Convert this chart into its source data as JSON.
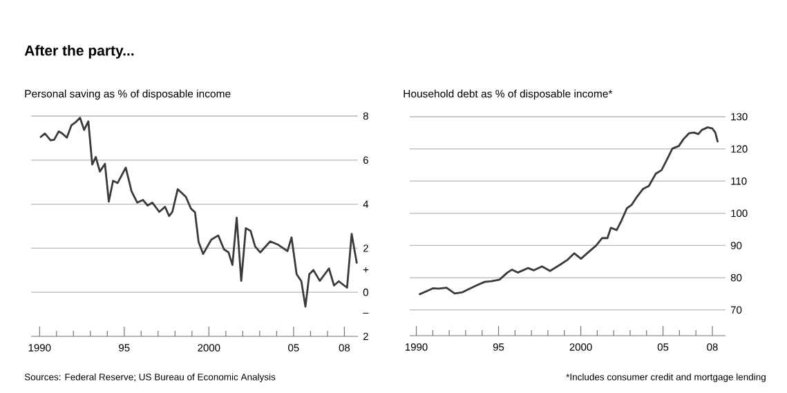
{
  "chart_data": [
    {
      "type": "line",
      "title": "After the party...",
      "subtitle": "Personal saving as % of disposable income",
      "color": "#3a3a3a",
      "grid": "y",
      "x": [
        1990.07,
        1990.31,
        1990.65,
        1990.86,
        1991.13,
        1991.34,
        1991.61,
        1991.88,
        1992.16,
        1992.39,
        1992.63,
        1992.88,
        1993.11,
        1993.32,
        1993.56,
        1993.86,
        1994.09,
        1994.34,
        1994.61,
        1995.09,
        1995.43,
        1995.77,
        1996.11,
        1996.38,
        1996.66,
        1997.07,
        1997.41,
        1997.65,
        1997.84,
        1998.16,
        1998.64,
        1998.94,
        1999.18,
        1999.39,
        1999.66,
        2000.14,
        2000.55,
        2000.89,
        2001.16,
        2001.39,
        2001.64,
        2001.91,
        2002.18,
        2002.46,
        2002.73,
        2003.03,
        2003.62,
        2004.09,
        2004.64,
        2004.88,
        2005.18,
        2005.46,
        2005.7,
        2005.93,
        2006.17,
        2006.55,
        2007.09,
        2007.39,
        2007.67,
        2008.16,
        2008.43,
        2008.73
      ],
      "values": [
        7.05,
        7.21,
        6.9,
        6.92,
        7.3,
        7.21,
        7.02,
        7.58,
        7.74,
        7.92,
        7.37,
        7.76,
        5.8,
        6.14,
        5.48,
        5.83,
        4.12,
        5.06,
        4.96,
        5.66,
        4.59,
        4.07,
        4.19,
        3.94,
        4.07,
        3.65,
        3.88,
        3.46,
        3.65,
        4.68,
        4.33,
        3.8,
        3.63,
        2.29,
        1.74,
        2.39,
        2.58,
        1.95,
        1.81,
        1.24,
        3.39,
        0.52,
        2.91,
        2.79,
        2.08,
        1.81,
        2.31,
        2.16,
        1.87,
        2.49,
        0.82,
        0.5,
        -0.65,
        0.82,
        1.01,
        0.52,
        1.08,
        0.31,
        0.5,
        0.21,
        2.65,
        1.34
      ],
      "xlim": [
        1989.5,
        2008.8
      ],
      "xticks": [
        1990,
        {
          "value": 1991,
          "label": null
        },
        {
          "value": 1992,
          "label": null
        },
        {
          "value": 1993,
          "label": null
        },
        {
          "value": 1994,
          "label": null
        },
        {
          "value": 1995,
          "label": "95"
        },
        {
          "value": 1996,
          "label": null
        },
        {
          "value": 1997,
          "label": null
        },
        {
          "value": 1998,
          "label": null
        },
        {
          "value": 1999,
          "label": null
        },
        2000,
        {
          "value": 2001,
          "label": null
        },
        {
          "value": 2002,
          "label": null
        },
        {
          "value": 2003,
          "label": null
        },
        {
          "value": 2004,
          "label": null
        },
        {
          "value": 2005,
          "label": "05"
        },
        {
          "value": 2006,
          "label": null
        },
        {
          "value": 2007,
          "label": null
        },
        {
          "value": 2008,
          "label": "08"
        }
      ],
      "ylim": [
        -2,
        8
      ],
      "yticks": [
        8,
        6,
        4,
        2,
        0,
        {
          "value": 1,
          "label": "+"
        },
        {
          "value": -1,
          "label": "–"
        },
        {
          "value": -2,
          "label": "2"
        }
      ],
      "annotations": [
        "Sources: Federal Reserve; US Bureau of Economic Analysis"
      ]
    },
    {
      "type": "line",
      "subtitle": "Household debt as % of disposable income*",
      "color": "#3a3a3a",
      "grid": "y",
      "x": [
        1990.21,
        1990.66,
        1991.0,
        1991.35,
        1991.84,
        1992.33,
        1992.82,
        1993.17,
        1993.66,
        1994.15,
        1994.57,
        1995.06,
        1995.54,
        1995.82,
        1996.17,
        1996.8,
        1997.15,
        1997.64,
        1998.13,
        1998.76,
        1999.18,
        1999.6,
        2000.01,
        2000.57,
        2000.92,
        2001.3,
        2001.62,
        2001.83,
        2002.18,
        2002.46,
        2002.81,
        2003.09,
        2003.37,
        2003.79,
        2004.14,
        2004.56,
        2004.91,
        2005.19,
        2005.57,
        2005.96,
        2006.24,
        2006.59,
        2006.87,
        2007.15,
        2007.36,
        2007.71,
        2007.99,
        2008.18,
        2008.32
      ],
      "values": [
        74.9,
        75.9,
        76.7,
        76.6,
        76.9,
        75.1,
        75.5,
        76.4,
        77.6,
        78.7,
        78.9,
        79.4,
        81.6,
        82.5,
        81.6,
        83.0,
        82.3,
        83.5,
        82.1,
        84.1,
        85.5,
        87.6,
        85.9,
        88.4,
        89.9,
        92.3,
        92.3,
        95.5,
        94.8,
        97.6,
        101.6,
        102.6,
        104.8,
        107.6,
        108.5,
        112.3,
        113.4,
        116.2,
        120.1,
        120.9,
        123.0,
        124.9,
        125.1,
        124.6,
        125.9,
        126.7,
        126.4,
        125.1,
        122.3
      ],
      "xlim": [
        1989.6,
        2008.8
      ],
      "xticks": [
        1990,
        {
          "value": 1991,
          "label": null
        },
        {
          "value": 1992,
          "label": null
        },
        {
          "value": 1993,
          "label": null
        },
        {
          "value": 1994,
          "label": null
        },
        {
          "value": 1995,
          "label": "95"
        },
        {
          "value": 1996,
          "label": null
        },
        {
          "value": 1997,
          "label": null
        },
        {
          "value": 1998,
          "label": null
        },
        {
          "value": 1999,
          "label": null
        },
        2000,
        {
          "value": 2001,
          "label": null
        },
        {
          "value": 2002,
          "label": null
        },
        {
          "value": 2003,
          "label": null
        },
        {
          "value": 2004,
          "label": null
        },
        {
          "value": 2005,
          "label": "05"
        },
        {
          "value": 2006,
          "label": null
        },
        {
          "value": 2007,
          "label": null
        },
        {
          "value": 2008,
          "label": "08"
        }
      ],
      "ylim": [
        62,
        130
      ],
      "yticks": [
        130,
        120,
        110,
        100,
        90,
        80,
        70
      ],
      "annotations": [
        "*Includes consumer credit and mortgage lending"
      ]
    }
  ]
}
